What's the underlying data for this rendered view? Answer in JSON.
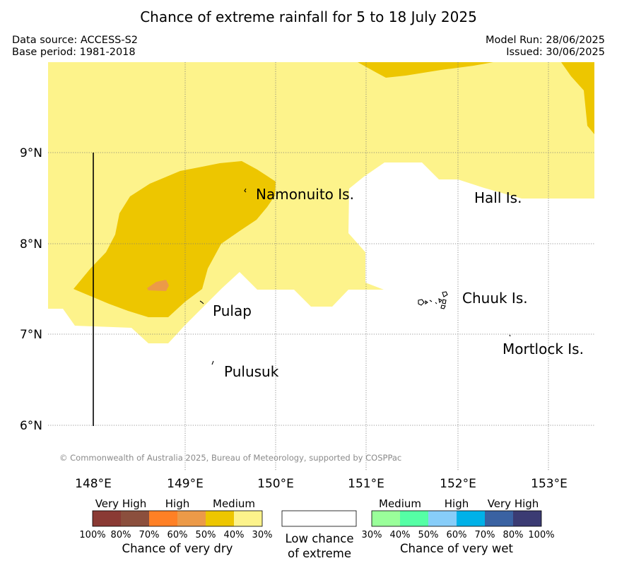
{
  "title": "Chance of extreme rainfall for 5 to 18 July 2025",
  "meta": {
    "data_source": "Data source: ACCESS-S2",
    "base_period": "Base period: 1981-2018",
    "model_run": "Model Run: 28/06/2025",
    "issued": "Issued: 30/06/2025"
  },
  "map": {
    "lon_ticks": [
      "148°E",
      "149°E",
      "150°E",
      "151°E",
      "152°E",
      "153°E"
    ],
    "lat_ticks": [
      "9°N",
      "8°N",
      "7°N",
      "6°N"
    ],
    "places": [
      "Namonuito Is.",
      "Hall Is.",
      "Pulap",
      "Chuuk Is.",
      "Pulusuk",
      "Mortlock Is."
    ],
    "copyright": "© Commonwealth of Australia 2025, Bureau of Meteorology, supported by COSPPac",
    "colors": {
      "dry_30_40": "#fdf38b",
      "dry_40_50": "#edc600",
      "dry_50_60": "#ec9a48",
      "dry_60_70": "#ff8025",
      "dry_70_80": "#8b4f3d",
      "dry_80_100": "#8a3a34",
      "low": "#ffffff",
      "wet_30_40": "#9aff9a",
      "wet_40_50": "#55ffa5",
      "wet_50_60": "#87cdf9",
      "wet_60_70": "#00b1e8",
      "wet_70_80": "#3a62a2",
      "wet_80_100": "#3b3b73"
    }
  },
  "legend": {
    "dry": {
      "categories": [
        "Very High",
        "High",
        "Medium"
      ],
      "ticks": [
        "100%",
        "80%",
        "70%",
        "60%",
        "50%",
        "40%",
        "30%"
      ],
      "caption": "Chance of very dry"
    },
    "low": {
      "caption_line1": "Low chance",
      "caption_line2": "of extreme"
    },
    "wet": {
      "categories": [
        "Medium",
        "High",
        "Very High"
      ],
      "ticks": [
        "30%",
        "40%",
        "50%",
        "60%",
        "70%",
        "80%",
        "100%"
      ],
      "caption": "Chance of very wet"
    }
  }
}
